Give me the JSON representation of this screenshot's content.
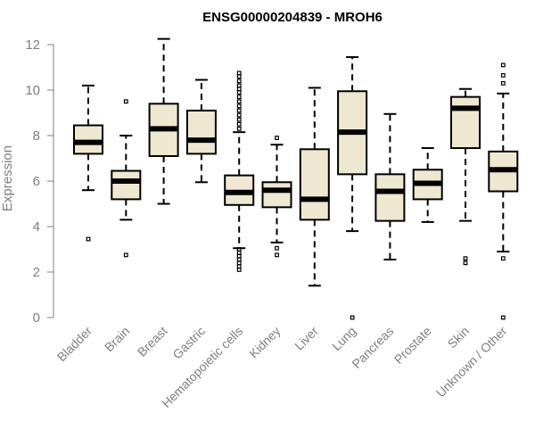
{
  "chart_data": {
    "type": "box",
    "title": "ENSG00000204839 - MROH6",
    "ylabel": "Expression",
    "xlabel": "",
    "ylim": [
      0,
      12
    ],
    "yticks": [
      0,
      2,
      4,
      6,
      8,
      10,
      12
    ],
    "grid": false,
    "colors": {
      "box_fill": "#efe8d0",
      "stroke": "#000000",
      "axis": "#808080"
    },
    "categories": [
      "Bladder",
      "Brain",
      "Breast",
      "Gastric",
      "Hematopoietic cells",
      "Kidney",
      "Liver",
      "Lung",
      "Pancreas",
      "Prostate",
      "Skin",
      "Unknown / Other"
    ],
    "boxes": [
      {
        "category": "Bladder",
        "whisker_low": 5.6,
        "q1": 7.2,
        "median": 7.7,
        "q3": 8.45,
        "whisker_high": 10.2,
        "outliers": [
          3.45
        ]
      },
      {
        "category": "Brain",
        "whisker_low": 4.3,
        "q1": 5.2,
        "median": 6.0,
        "q3": 6.45,
        "whisker_high": 8.0,
        "outliers": [
          9.5,
          2.75
        ]
      },
      {
        "category": "Breast",
        "whisker_low": 5.0,
        "q1": 7.1,
        "median": 8.3,
        "q3": 9.4,
        "whisker_high": 12.25,
        "outliers": []
      },
      {
        "category": "Gastric",
        "whisker_low": 5.95,
        "q1": 7.2,
        "median": 7.8,
        "q3": 9.1,
        "whisker_high": 10.45,
        "outliers": []
      },
      {
        "category": "Hematopoietic cells",
        "whisker_low": 3.05,
        "q1": 4.95,
        "median": 5.5,
        "q3": 6.25,
        "whisker_high": 8.15,
        "outliers": [
          8.3,
          8.5,
          8.7,
          8.9,
          9.1,
          9.3,
          9.5,
          9.7,
          9.9,
          10.05,
          10.2,
          10.4,
          10.6,
          10.75,
          2.1,
          2.25,
          2.4,
          2.55,
          2.7,
          2.85,
          3.0
        ]
      },
      {
        "category": "Kidney",
        "whisker_low": 3.3,
        "q1": 4.85,
        "median": 5.6,
        "q3": 5.95,
        "whisker_high": 7.6,
        "outliers": [
          7.9,
          3.05,
          2.75
        ]
      },
      {
        "category": "Liver",
        "whisker_low": 1.4,
        "q1": 4.3,
        "median": 5.2,
        "q3": 7.4,
        "whisker_high": 10.1,
        "outliers": []
      },
      {
        "category": "Lung",
        "whisker_low": 3.8,
        "q1": 6.3,
        "median": 8.15,
        "q3": 9.95,
        "whisker_high": 11.45,
        "outliers": [
          0.0
        ]
      },
      {
        "category": "Pancreas",
        "whisker_low": 2.55,
        "q1": 4.25,
        "median": 5.55,
        "q3": 6.3,
        "whisker_high": 8.95,
        "outliers": []
      },
      {
        "category": "Prostate",
        "whisker_low": 4.2,
        "q1": 5.2,
        "median": 5.9,
        "q3": 6.5,
        "whisker_high": 7.45,
        "outliers": []
      },
      {
        "category": "Skin",
        "whisker_low": 4.25,
        "q1": 7.45,
        "median": 9.2,
        "q3": 9.7,
        "whisker_high": 10.05,
        "outliers": [
          2.6,
          2.4
        ]
      },
      {
        "category": "Unknown / Other",
        "whisker_low": 2.9,
        "q1": 5.55,
        "median": 6.5,
        "q3": 7.3,
        "whisker_high": 9.85,
        "outliers": [
          10.3,
          10.65,
          11.1,
          2.6,
          0.0
        ]
      }
    ]
  }
}
